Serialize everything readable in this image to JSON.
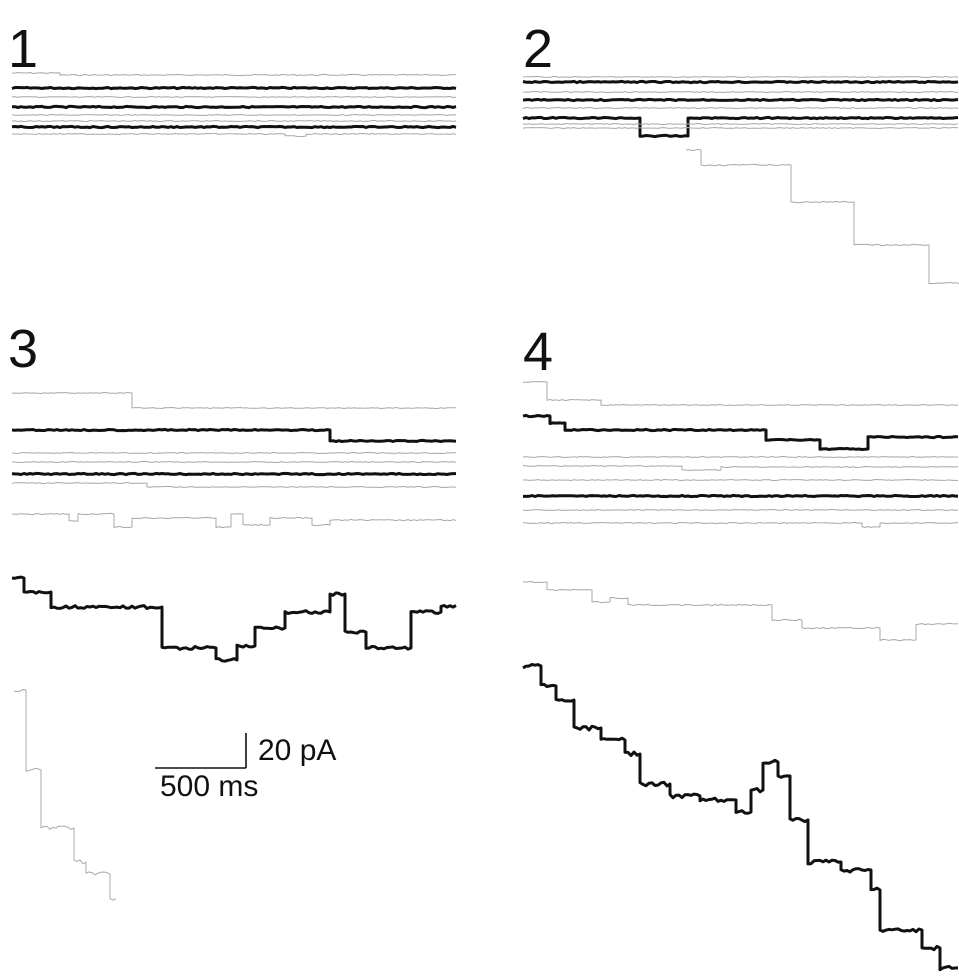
{
  "panels": [
    {
      "label": "1"
    },
    {
      "label": "2"
    },
    {
      "label": "3"
    },
    {
      "label": "4"
    }
  ],
  "scale_bar": {
    "current_label": "20 pA",
    "time_label": "500 ms"
  },
  "colors": {
    "thick_trace": "#111111",
    "thin_trace": "#a8a8a8",
    "background": "#ffffff"
  }
}
